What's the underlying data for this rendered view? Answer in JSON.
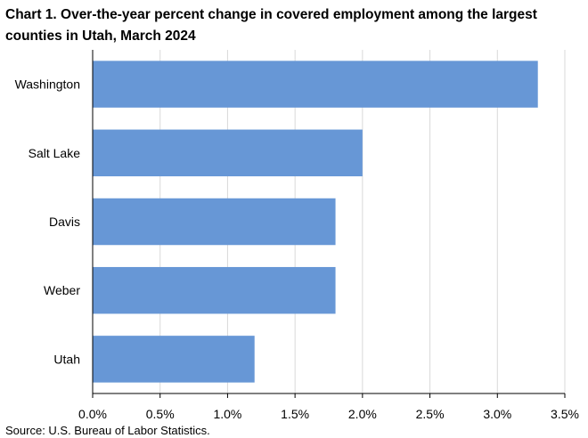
{
  "chart_data": {
    "type": "bar",
    "orientation": "horizontal",
    "title": "Chart 1. Over-the-year percent change in covered employment among the largest counties in Utah, March 2024",
    "categories": [
      "Washington",
      "Salt Lake",
      "Davis",
      "Weber",
      "Utah"
    ],
    "values": [
      3.3,
      2.0,
      1.8,
      1.8,
      1.2
    ],
    "xlim": [
      0,
      3.5
    ],
    "xticks": [
      0,
      0.5,
      1.0,
      1.5,
      2.0,
      2.5,
      3.0,
      3.5
    ],
    "xtick_labels": [
      "0.0%",
      "0.5%",
      "1.0%",
      "1.5%",
      "2.0%",
      "2.5%",
      "3.0%",
      "3.5%"
    ],
    "xlabel": "",
    "ylabel": "",
    "grid": true,
    "legend": "none",
    "colors": {
      "bar": "#6797D6",
      "grid": "#D9D9D9",
      "axis": "#000000"
    }
  },
  "source": "Source: U.S. Bureau of Labor Statistics."
}
